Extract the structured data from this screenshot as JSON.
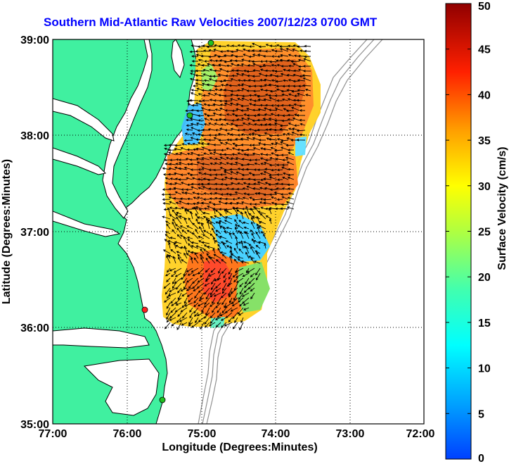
{
  "title": "Southern Mid-Atlantic Raw Velocities 2007/12/23 0700 GMT",
  "map": {
    "x_label": "Longitude (Degrees:Minutes)",
    "y_label": "Latitude (Degrees:Minutes)",
    "x_ticks": [
      "77:00",
      "76:00",
      "75:00",
      "74:00",
      "73:00",
      "72:00"
    ],
    "y_ticks": [
      "39:00",
      "38:00",
      "37:00",
      "36:00",
      "35:00"
    ],
    "land_color": "#40f0a0",
    "coast_color": "#000000",
    "bathymetry_color": "#909090",
    "grid_style": "dotted"
  },
  "colorbar": {
    "label": "Surface Velocity (cm/s)",
    "ticks": [
      "0",
      "5",
      "10",
      "15",
      "20",
      "25",
      "30",
      "35",
      "40",
      "45",
      "50"
    ],
    "min": 0,
    "max": 50,
    "colormap": "jet"
  },
  "stations": [
    {
      "color": "#20c020"
    },
    {
      "color": "#20c020"
    },
    {
      "color": "#ff2020"
    },
    {
      "color": "#20c020"
    }
  ]
}
